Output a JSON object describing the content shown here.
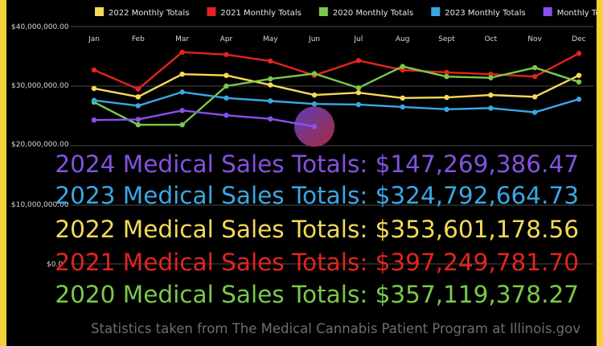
{
  "chart_data": {
    "type": "line",
    "title": "",
    "xlabel": "",
    "ylabel": "",
    "categories": [
      "Jan",
      "Feb",
      "Mar",
      "Apr",
      "May",
      "Jun",
      "Jul",
      "Aug",
      "Sept",
      "Oct",
      "Nov",
      "Dec"
    ],
    "y_ticks": [
      "$40,000,000.00",
      "$30,000,000.00",
      "$20,000,000.00",
      "$10,000,000.00",
      "$0.0"
    ],
    "ylim": [
      0,
      40000000
    ],
    "y_scale": "piecewise: $0.0 to $10,000,000.00 compressed; $10M to $40M linear",
    "grid": true,
    "legend_position": "top",
    "series": [
      {
        "name": "2022 Monthly Totals",
        "color": "#f6d95a",
        "values": [
          29600000,
          28200000,
          32000000,
          31800000,
          30200000,
          28500000,
          28900000,
          28000000,
          28100000,
          28500000,
          28200000,
          31800000
        ]
      },
      {
        "name": "2021 Monthly Totals",
        "color": "#e3241f",
        "values": [
          32700000,
          29500000,
          35700000,
          35300000,
          34200000,
          31800000,
          34300000,
          32700000,
          32300000,
          32000000,
          31600000,
          35500000
        ]
      },
      {
        "name": "2020 Monthly Totals",
        "color": "#7bc94a",
        "values": [
          27300000,
          23500000,
          23500000,
          30000000,
          31200000,
          32100000,
          29700000,
          33300000,
          31600000,
          31400000,
          33100000,
          30700000
        ]
      },
      {
        "name": "2023 Monthly Totals",
        "color": "#3aa7e4",
        "values": [
          27600000,
          26700000,
          29000000,
          28000000,
          27500000,
          27000000,
          26900000,
          26500000,
          26100000,
          26300000,
          25600000,
          27800000
        ]
      },
      {
        "name": "Monthly Totals",
        "color": "#8a4ff0",
        "values": [
          24300000,
          24400000,
          25900000,
          25100000,
          24500000,
          23200000,
          null,
          null,
          null,
          null,
          null,
          null
        ]
      }
    ]
  },
  "totals": [
    {
      "text": "2024 Medical Sales Totals: $147,269,386.47",
      "color": "#8352e0"
    },
    {
      "text": "2023 Medical Sales Totals: $324,792,664.73",
      "color": "#3aa7e4"
    },
    {
      "text": "2022 Medical Sales Totals: $353,601,178.56",
      "color": "#f6d95a"
    },
    {
      "text": "2021 Medical Sales Totals: $397,249,781.70",
      "color": "#e3241f"
    },
    {
      "text": "2020 Medical Sales Totals: $357,119,378.27",
      "color": "#7bc94a"
    }
  ],
  "footer": "Statistics taken from The Medical Cannabis Patient Program at Illinois.gov",
  "colors": {
    "background": "#000000",
    "border": "#f5cf3a",
    "grid": "#4a4a4a",
    "highlight_start": "#6b4bd6",
    "highlight_end": "#c4304a"
  }
}
